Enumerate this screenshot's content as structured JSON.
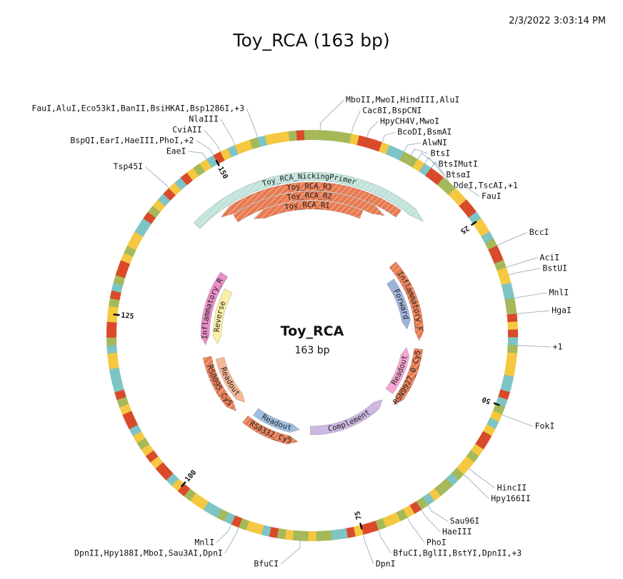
{
  "header": {
    "timestamp": "2/3/2022 3:03:14 PM",
    "title": "Toy_RCA (163 bp)"
  },
  "plasmid": {
    "name": "Toy_RCA",
    "length_label": "163 bp",
    "length": 163,
    "ticks": [
      {
        "pos": 25,
        "label": "25"
      },
      {
        "pos": 50,
        "label": "50"
      },
      {
        "pos": 75,
        "label": "75"
      },
      {
        "pos": 100,
        "label": "100"
      },
      {
        "pos": 125,
        "label": "125"
      },
      {
        "pos": 150,
        "label": "150"
      }
    ]
  },
  "sequence_colors": {
    "A": "#a5b95a",
    "T": "#d94a2b",
    "G": "#f5c842",
    "C": "#7fc4c4"
  },
  "sequence": "AAAAAGTTTGCCAAGCTTAAGGTTCGGCATTAGGCCAATGTCAGGGCCTCAGCGTTGAGGACAAGCATGAGGATTGTCCAAGAAGATCGGATCACCGGATGCTTGTGAGCTTGATCCCGGCATTGGATCATTGAGGCCTAGCTGCTGAGCTGCGGACGGGAT",
  "features": [
    {
      "name": "Toy_RCA_NickingPrimer",
      "start": 142,
      "end": 19,
      "track": 0,
      "dir": 1,
      "color": "#bfe3da"
    },
    {
      "name": "Toy_RCA_R3",
      "start": 146,
      "end": 15,
      "track": 1,
      "dir": -1,
      "color": "#e87a50"
    },
    {
      "name": "Toy_RCA_R2",
      "start": 148,
      "end": 13,
      "track": 2,
      "dir": 1,
      "color": "#e87a50"
    },
    {
      "name": "Toy_RCA_R1",
      "start": 151,
      "end": 9,
      "track": 3,
      "dir": -1,
      "color": "#e87a50"
    },
    {
      "name": "Inflammatory_F",
      "start": 22,
      "end": 41,
      "track": 4,
      "dir": 1,
      "color": "#e87a50"
    },
    {
      "name": "Forward",
      "start": 25,
      "end": 38,
      "track": 5,
      "dir": 1,
      "color": "#9fb3d9"
    },
    {
      "name": "RSN9927_0_Cy5",
      "start": 44,
      "end": 58,
      "track": 4,
      "dir": 1,
      "color": "#e87a50"
    },
    {
      "name": "Readout",
      "start": 44,
      "end": 56,
      "track": 5,
      "dir": -1,
      "color": "#f6a6d2"
    },
    {
      "name": "Complement",
      "start": 60,
      "end": 81,
      "track": 5,
      "dir": -1,
      "color": "#cdb8e3"
    },
    {
      "name": "RS0332_Cy5",
      "start": 85,
      "end": 98,
      "track": 4,
      "dir": -1,
      "color": "#e87a50"
    },
    {
      "name": "Readout",
      "start": 85,
      "end": 97,
      "track": 5,
      "dir": -1,
      "color": "#9fc0e0"
    },
    {
      "name": "RS0095_Cy5",
      "start": 102,
      "end": 116,
      "track": 4,
      "dir": -1,
      "color": "#e87a50"
    },
    {
      "name": "Readout",
      "start": 102,
      "end": 115,
      "track": 5,
      "dir": -1,
      "color": "#f6b896"
    },
    {
      "name": "Inflammatory_R",
      "start": 120,
      "end": 137,
      "track": 4,
      "dir": -1,
      "color": "#ea8fc7"
    },
    {
      "name": "Reverse",
      "start": 120,
      "end": 134,
      "track": 5,
      "dir": -1,
      "color": "#fbf0a8"
    }
  ],
  "cut_sites": [
    {
      "label": "MboII,MwoI,HindIII,AluI",
      "pos": 1
    },
    {
      "label": "Cac8I,BspCNI",
      "pos": 5
    },
    {
      "label": "HpyCH4V,MwoI",
      "pos": 7
    },
    {
      "label": "BcoDI,BsmAI",
      "pos": 9
    },
    {
      "label": "AlwNI",
      "pos": 12
    },
    {
      "label": "BtsI",
      "pos": 13
    },
    {
      "label": "BtsIMutI",
      "pos": 14
    },
    {
      "label": "BtsαI",
      "pos": 15
    },
    {
      "label": "DdeI,TscAI,+1",
      "pos": 16
    },
    {
      "label": "FauI",
      "pos": 20
    },
    {
      "label": "BccI",
      "pos": 29
    },
    {
      "label": "AciI",
      "pos": 32
    },
    {
      "label": "BstUI",
      "pos": 33
    },
    {
      "label": "MnlI",
      "pos": 36
    },
    {
      "label": "HgaI",
      "pos": 38
    },
    {
      "label": "+1",
      "pos": 42
    },
    {
      "label": "FokI",
      "pos": 51
    },
    {
      "label": "HincII",
      "pos": 59
    },
    {
      "label": "Hpy166II",
      "pos": 60
    },
    {
      "label": "Sau96I",
      "pos": 66
    },
    {
      "label": "HaeIII",
      "pos": 67
    },
    {
      "label": "PhoI",
      "pos": 69
    },
    {
      "label": "BfuCI,BglII,BstYI,DpnII,+3",
      "pos": 73
    },
    {
      "label": "DpnI",
      "pos": 75
    },
    {
      "label": "BfuCI",
      "pos": 83
    },
    {
      "label": "DpnII,Hpy188I,MboI,Sau3AI,DpnI",
      "pos": 91
    },
    {
      "label": "MnlI",
      "pos": 92
    },
    {
      "label": "Tsp45I",
      "pos": 143
    },
    {
      "label": "EaeI",
      "pos": 149
    },
    {
      "label": "BspQI,EarI,HaeIII,PhoI,+2",
      "pos": 150
    },
    {
      "label": "CviAII",
      "pos": 151
    },
    {
      "label": "NlaIII",
      "pos": 153
    },
    {
      "label": "FauI,AluI,Eco53kI,BanII,BsiHKAI,Bsp1286I,+3",
      "pos": 156
    }
  ]
}
